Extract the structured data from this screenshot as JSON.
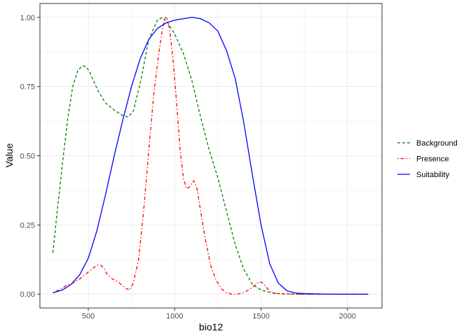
{
  "chart_data": {
    "type": "line",
    "title": "",
    "xlabel": "bio12",
    "ylabel": "Value",
    "xlim": [
      220,
      2200
    ],
    "ylim": [
      -0.05,
      1.05
    ],
    "x_ticks": [
      500,
      1000,
      1500,
      2000
    ],
    "x_tick_labels": [
      "500",
      "1000",
      "1500",
      "2000"
    ],
    "y_ticks": [
      0,
      0.25,
      0.5,
      0.75,
      1
    ],
    "y_tick_labels": [
      "0.00",
      "0.25",
      "0.50",
      "0.75",
      "1.00"
    ],
    "grid": true,
    "legend_position": "right",
    "series": [
      {
        "name": "Background",
        "color": "#008000",
        "dash": "dashed",
        "x": [
          295,
          320,
          350,
          380,
          410,
          440,
          470,
          490,
          510,
          530,
          560,
          600,
          650,
          700,
          730,
          760,
          800,
          850,
          900,
          930,
          960,
          1000,
          1050,
          1100,
          1150,
          1200,
          1250,
          1300,
          1350,
          1400,
          1450,
          1500,
          1550,
          1600,
          1650,
          1700,
          1800,
          1900,
          2000,
          2120
        ],
        "values": [
          0.15,
          0.3,
          0.47,
          0.63,
          0.75,
          0.81,
          0.825,
          0.82,
          0.8,
          0.77,
          0.73,
          0.69,
          0.665,
          0.645,
          0.64,
          0.66,
          0.76,
          0.92,
          0.99,
          1.0,
          0.98,
          0.94,
          0.87,
          0.77,
          0.64,
          0.52,
          0.42,
          0.3,
          0.18,
          0.09,
          0.035,
          0.015,
          0.006,
          0.002,
          0.001,
          0.0,
          0.0,
          0.0,
          0.0,
          0.0
        ]
      },
      {
        "name": "Presence",
        "color": "#ff0000",
        "dash": "dotdash",
        "x": [
          295,
          330,
          370,
          410,
          450,
          490,
          520,
          550,
          570,
          590,
          610,
          640,
          670,
          700,
          720,
          740,
          760,
          790,
          820,
          850,
          880,
          910,
          930,
          945,
          955,
          970,
          990,
          1010,
          1030,
          1050,
          1070,
          1090,
          1110,
          1130,
          1150,
          1180,
          1210,
          1240,
          1270,
          1300,
          1330,
          1360,
          1400,
          1440,
          1470,
          1490,
          1510,
          1530,
          1550,
          1580,
          1620,
          1700,
          1800,
          1900,
          2000,
          2120
        ],
        "values": [
          0.005,
          0.015,
          0.03,
          0.04,
          0.055,
          0.075,
          0.09,
          0.105,
          0.105,
          0.095,
          0.07,
          0.055,
          0.045,
          0.03,
          0.02,
          0.015,
          0.04,
          0.12,
          0.3,
          0.52,
          0.73,
          0.88,
          0.96,
          1.0,
          0.995,
          0.96,
          0.85,
          0.7,
          0.53,
          0.42,
          0.38,
          0.39,
          0.41,
          0.38,
          0.3,
          0.19,
          0.1,
          0.05,
          0.02,
          0.005,
          0.0,
          0.0,
          0.005,
          0.02,
          0.035,
          0.045,
          0.04,
          0.025,
          0.01,
          0.003,
          0.001,
          0.0,
          0.0,
          0.0,
          0.0,
          0.0
        ]
      },
      {
        "name": "Suitability",
        "color": "#0000ff",
        "dash": "solid",
        "x": [
          295,
          350,
          400,
          450,
          500,
          550,
          600,
          650,
          700,
          750,
          800,
          850,
          900,
          950,
          1000,
          1050,
          1100,
          1150,
          1200,
          1250,
          1300,
          1350,
          1400,
          1450,
          1500,
          1550,
          1600,
          1650,
          1700,
          1750,
          1800,
          1900,
          2000,
          2120
        ],
        "values": [
          0.005,
          0.015,
          0.035,
          0.07,
          0.13,
          0.23,
          0.36,
          0.5,
          0.63,
          0.75,
          0.85,
          0.92,
          0.96,
          0.98,
          0.99,
          0.995,
          1.0,
          0.995,
          0.98,
          0.95,
          0.88,
          0.78,
          0.62,
          0.43,
          0.25,
          0.11,
          0.04,
          0.012,
          0.004,
          0.002,
          0.001,
          0.0,
          0.0,
          0.0
        ]
      }
    ]
  }
}
